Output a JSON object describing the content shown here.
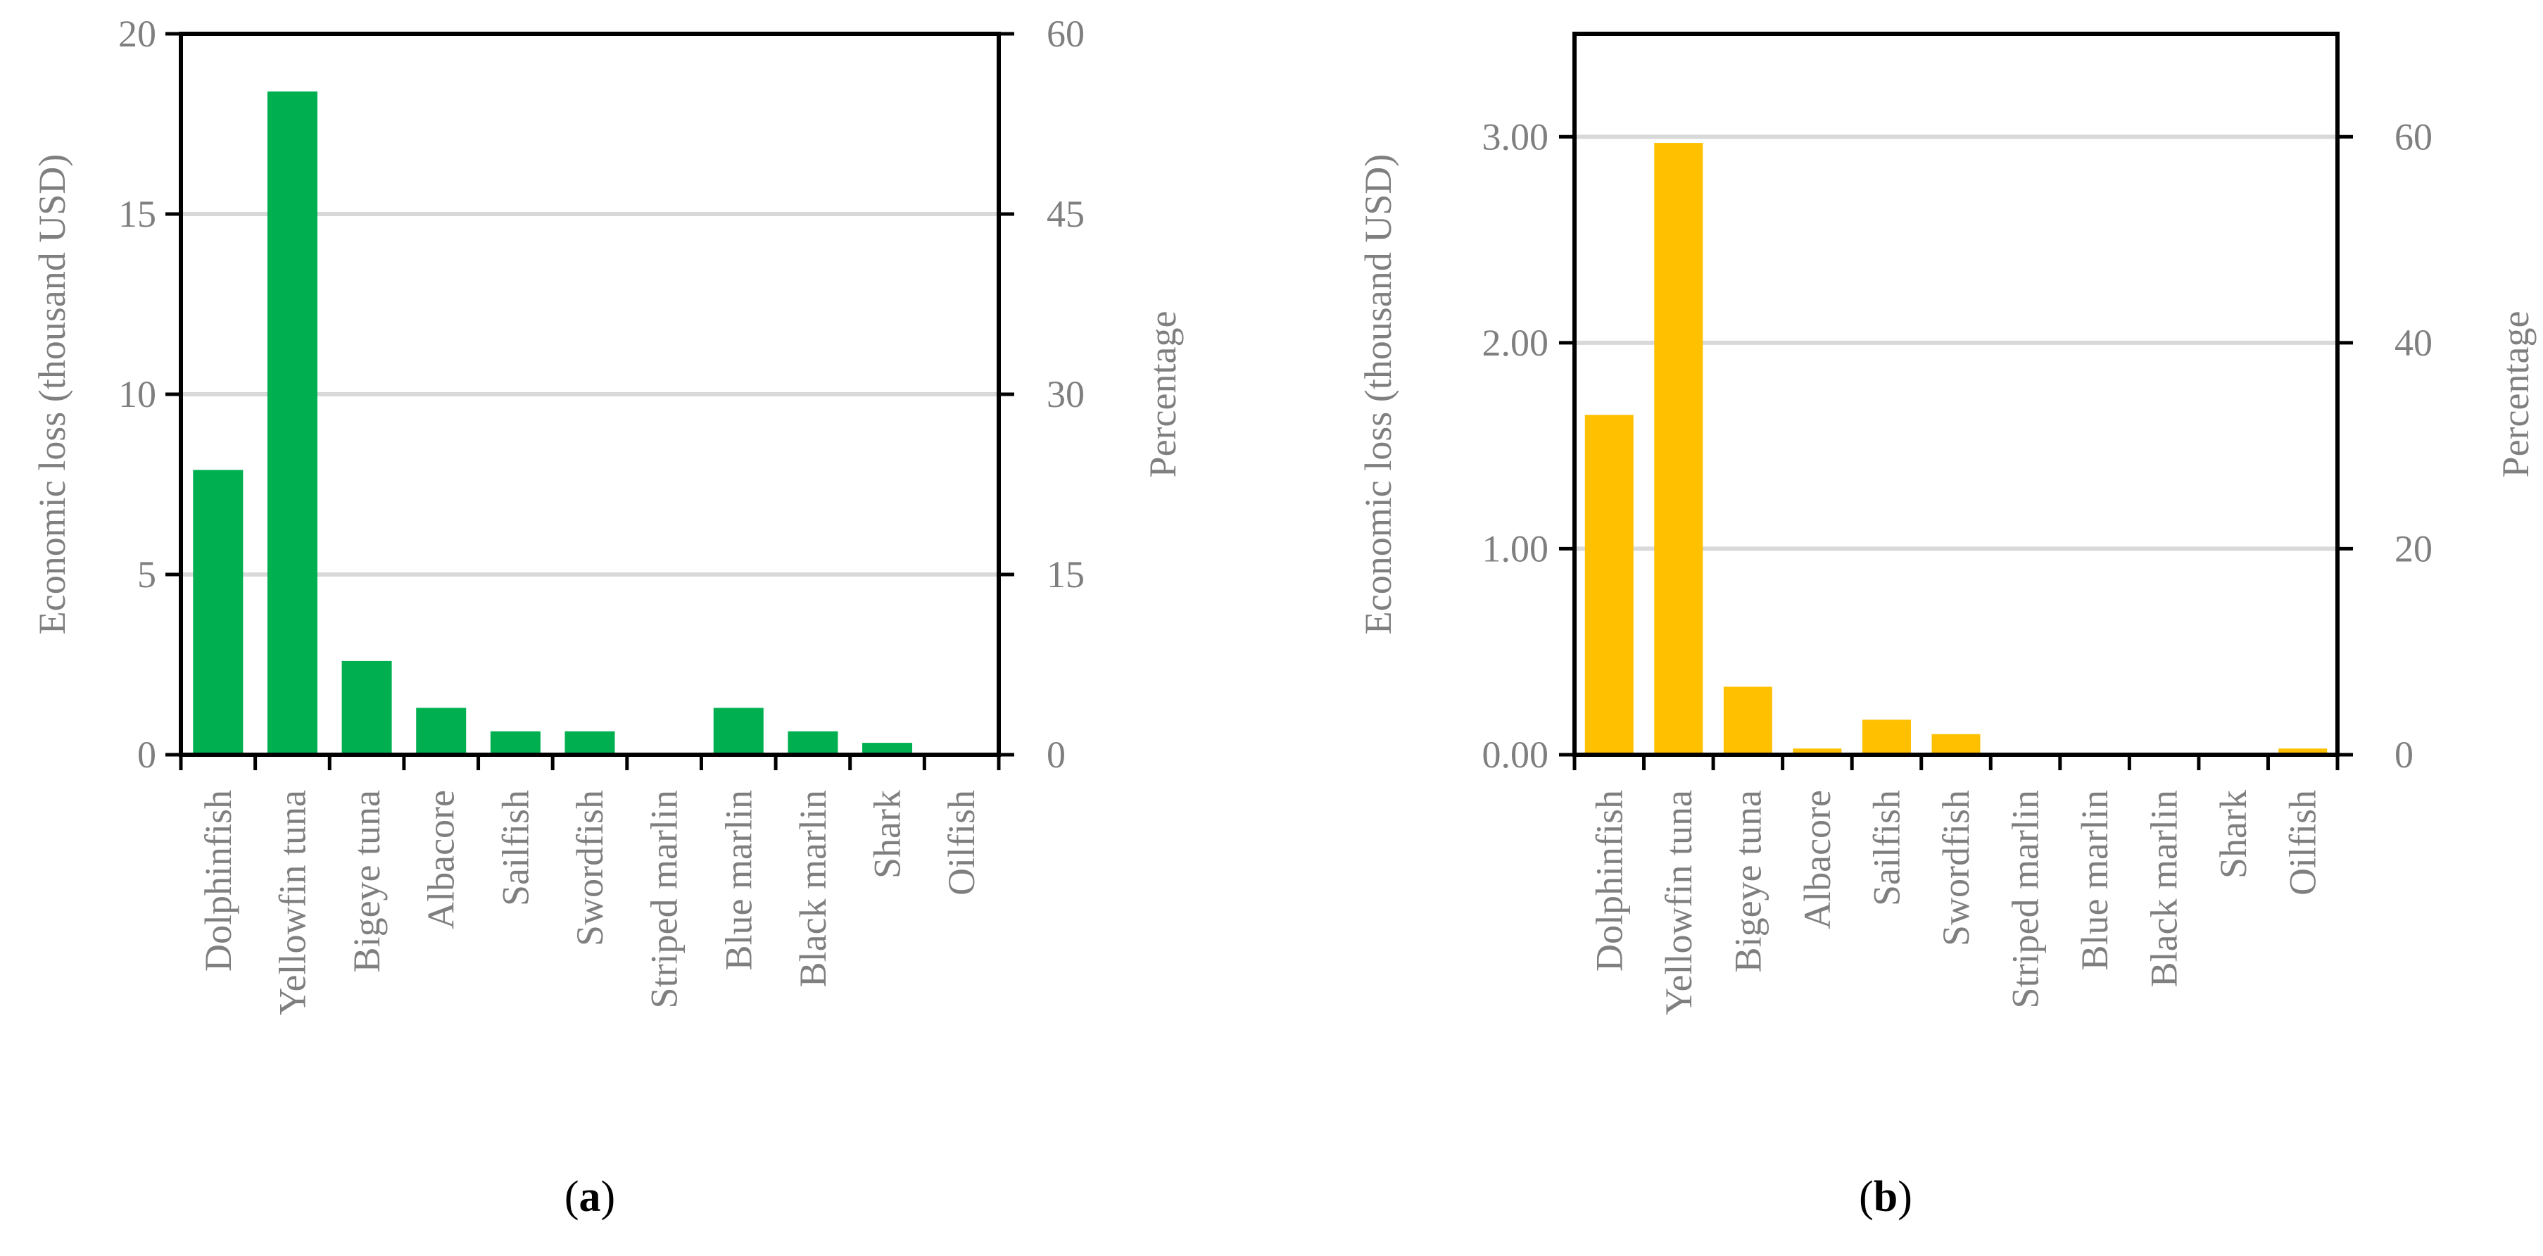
{
  "colors": {
    "panel_a_bar": "#00b050",
    "panel_b_bar": "#ffc000",
    "gridline": "#d9d9d9",
    "axis_text": "#7f7f7f",
    "frame": "#000000"
  },
  "chart_data": [
    {
      "id": "a",
      "type": "bar",
      "panel_label": "a",
      "title": "",
      "ylabel": "Economic loss (thousand USD)",
      "y2label": "Percentage",
      "ylim": [
        0,
        20
      ],
      "yticks": [
        0,
        5,
        10,
        15,
        20
      ],
      "ytick_labels": [
        "0",
        "5",
        "10",
        "15",
        "20"
      ],
      "y2lim": [
        0,
        60
      ],
      "y2ticks": [
        0,
        15,
        30,
        45,
        60
      ],
      "y2tick_labels": [
        "0",
        "15",
        "30",
        "45",
        "60"
      ],
      "grid": true,
      "categories": [
        "Dolphinfish",
        "Yellowfin tuna",
        "Bigeye tuna",
        "Albacore",
        "Sailfish",
        "Swordfish",
        "Striped marlin",
        "Blue marlin",
        "Black marlin",
        "Shark",
        "Oilfish"
      ],
      "values": [
        7.9,
        18.4,
        2.6,
        1.3,
        0.65,
        0.65,
        0,
        1.3,
        0.65,
        0.33,
        0
      ]
    },
    {
      "id": "b",
      "type": "bar",
      "panel_label": "b",
      "title": "",
      "ylabel": "Economic loss (thousand USD)",
      "y2label": "Percentage",
      "ylim": [
        0,
        3.5
      ],
      "yticks": [
        0,
        1,
        2,
        3
      ],
      "ytick_labels": [
        "0.00",
        "1.00",
        "2.00",
        "3.00"
      ],
      "y2lim": [
        0,
        70
      ],
      "y2ticks": [
        0,
        20,
        40,
        60
      ],
      "y2tick_labels": [
        "0",
        "20",
        "40",
        "60"
      ],
      "grid": true,
      "categories": [
        "Dolphinfish",
        "Yellowfin tuna",
        "Bigeye tuna",
        "Albacore",
        "Sailfish",
        "Swordfish",
        "Striped marlin",
        "Blue marlin",
        "Black marlin",
        "Shark",
        "Oilfish"
      ],
      "values": [
        1.65,
        2.97,
        0.33,
        0.03,
        0.17,
        0.1,
        0,
        0,
        0,
        0,
        0.03
      ]
    }
  ]
}
